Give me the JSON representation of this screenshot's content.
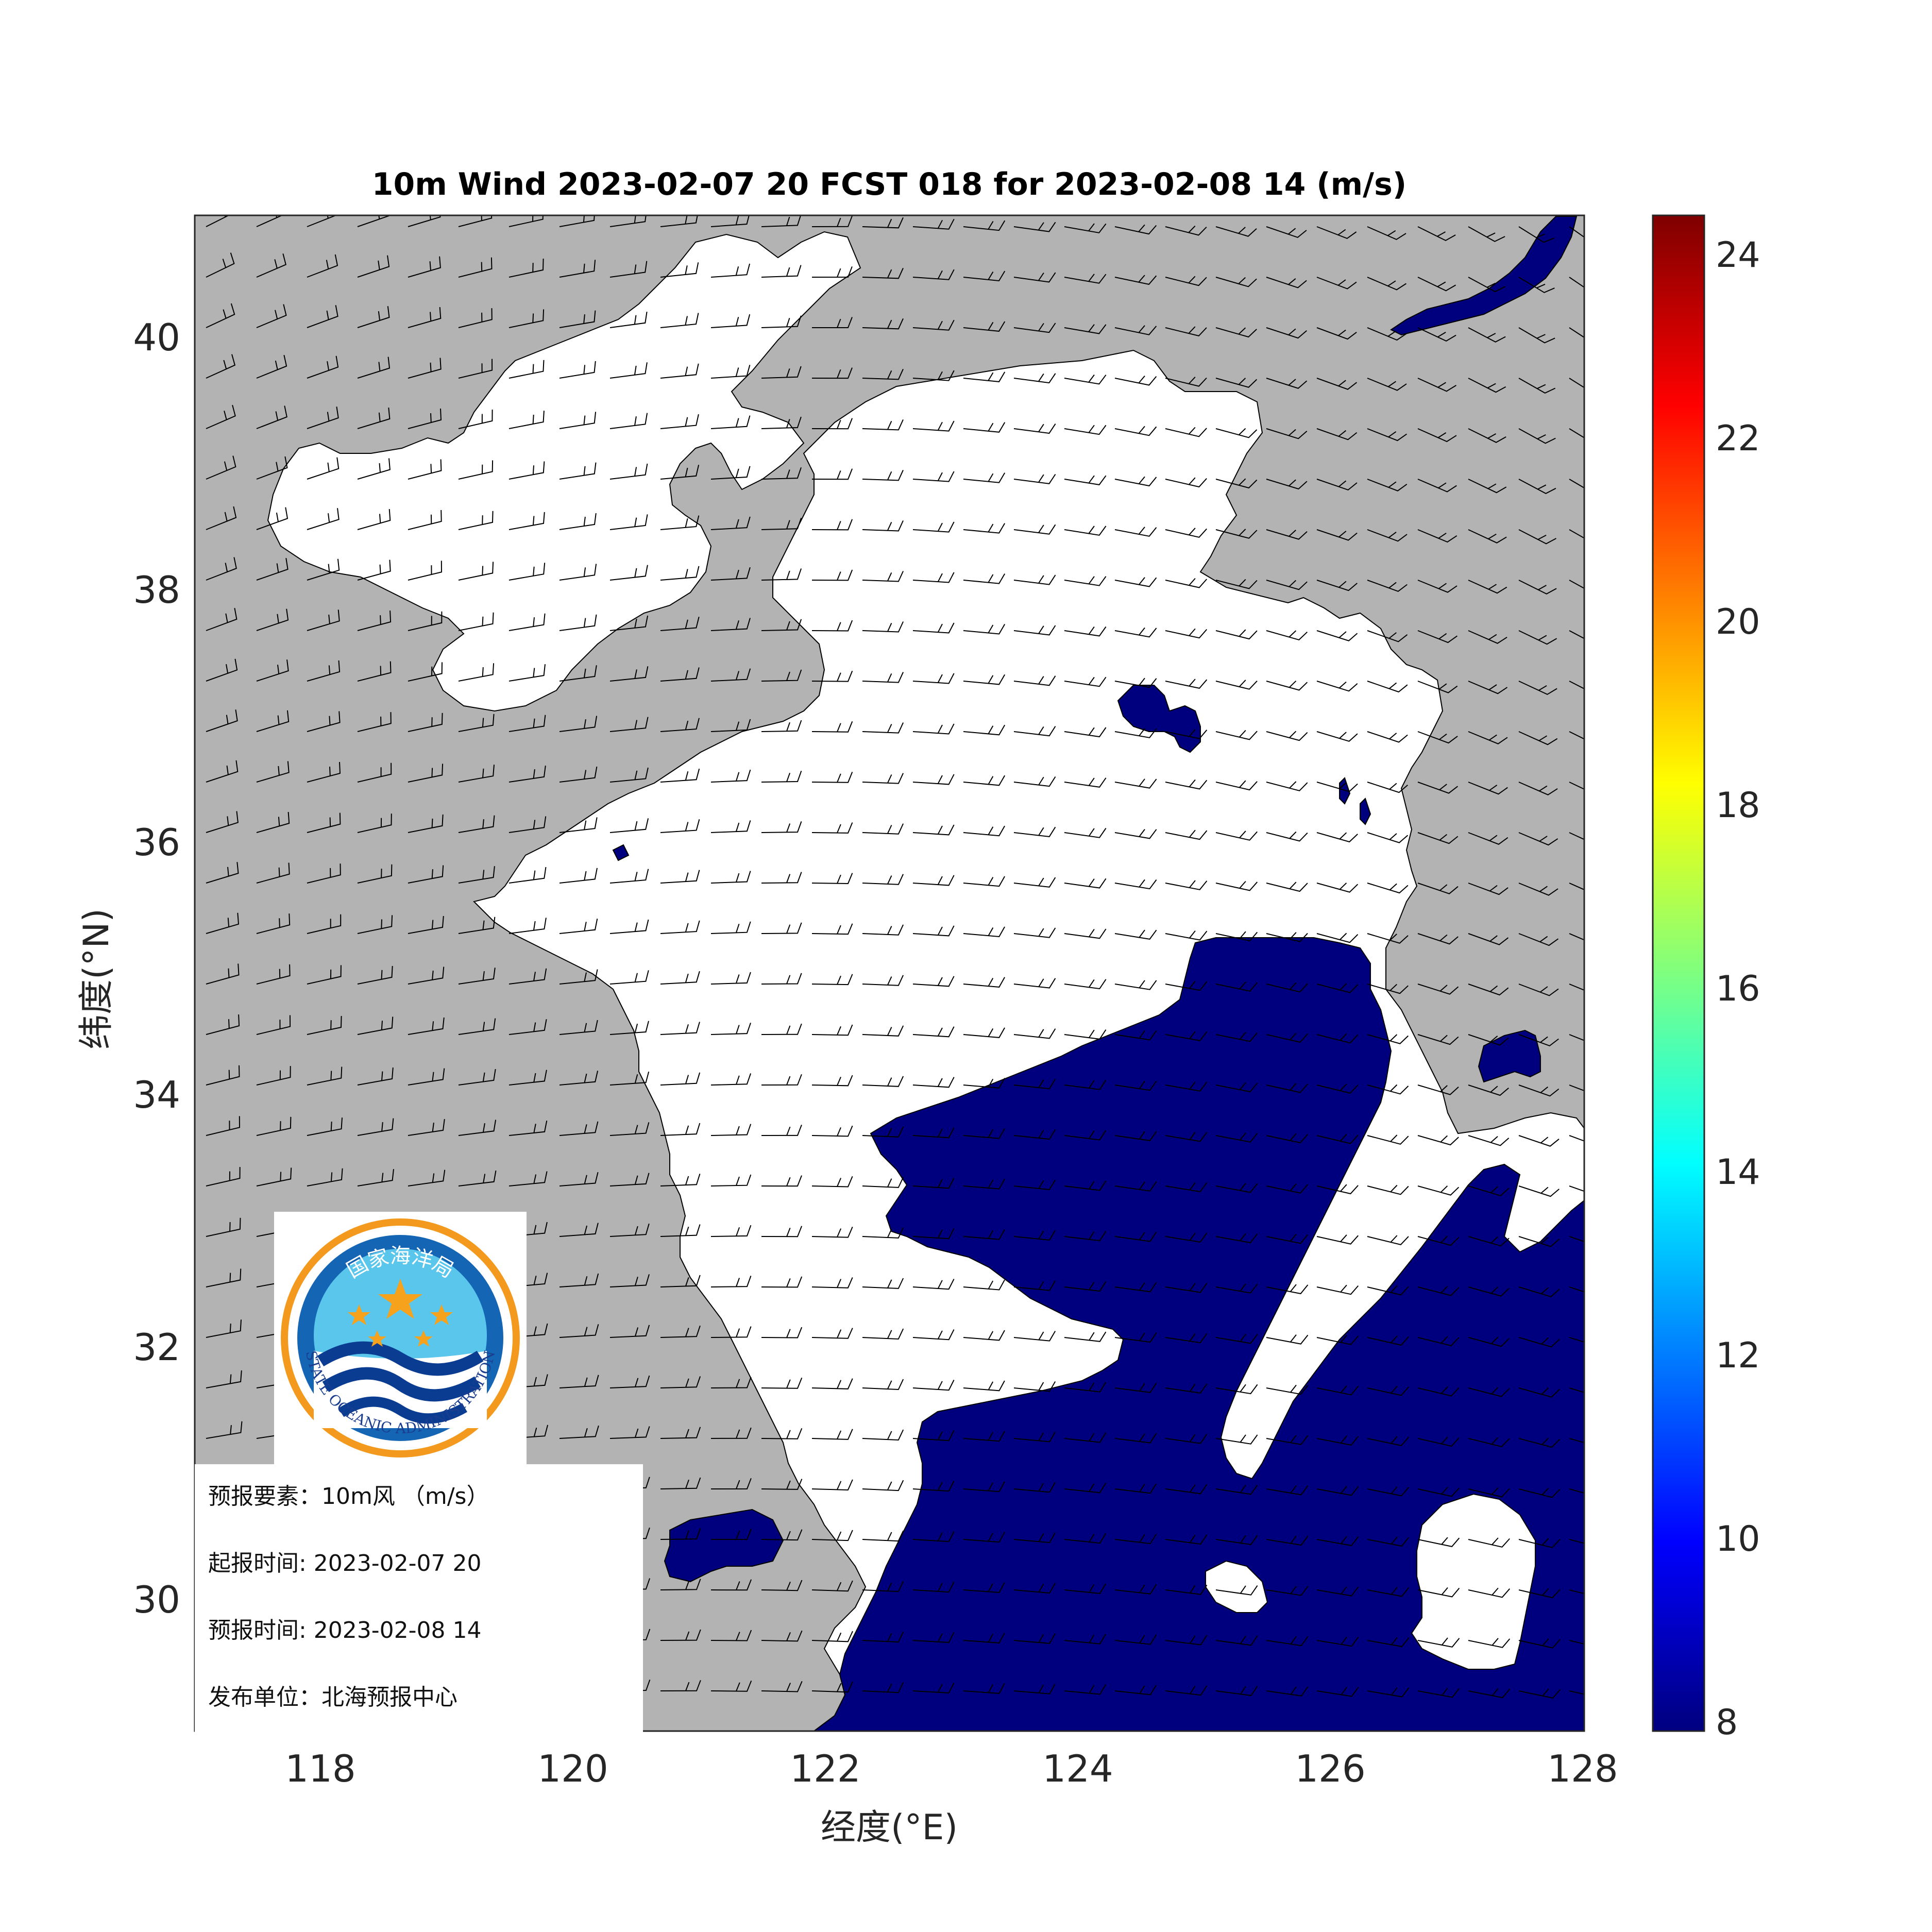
{
  "title": "10m Wind 2023-02-07 20 FCST 018 for 2023-02-08 14 (m/s)",
  "x_axis": {
    "label": "经度(°E)",
    "ticks": [
      "118",
      "120",
      "122",
      "124",
      "126",
      "128"
    ]
  },
  "y_axis": {
    "label": "纬度(°N)",
    "ticks": [
      "30",
      "32",
      "34",
      "36",
      "38",
      "40"
    ]
  },
  "colorbar": {
    "ticks": [
      "8",
      "10",
      "12",
      "14",
      "16",
      "18",
      "20",
      "22",
      "24"
    ],
    "colors": [
      "#00007f",
      "#0000ff",
      "#007fff",
      "#00ffff",
      "#7fff7f",
      "#ffff00",
      "#ff7f00",
      "#ff0000",
      "#7f0000"
    ]
  },
  "map_colors": {
    "land": "#b3b3b3",
    "sea_low": "#ffffff",
    "sea_over_8": "#00007f"
  },
  "logo": {
    "top_text": "国家海洋局",
    "bottom_text": "STATE OCEANIC ADMINISTRATION"
  },
  "info": {
    "element": "预报要素：10m风 （m/s）",
    "issue_time": "起报时间: 2023-02-07 20",
    "forecast_time": "预报时间: 2023-02-08 14",
    "publisher": "发布单位：北海预报中心"
  }
}
